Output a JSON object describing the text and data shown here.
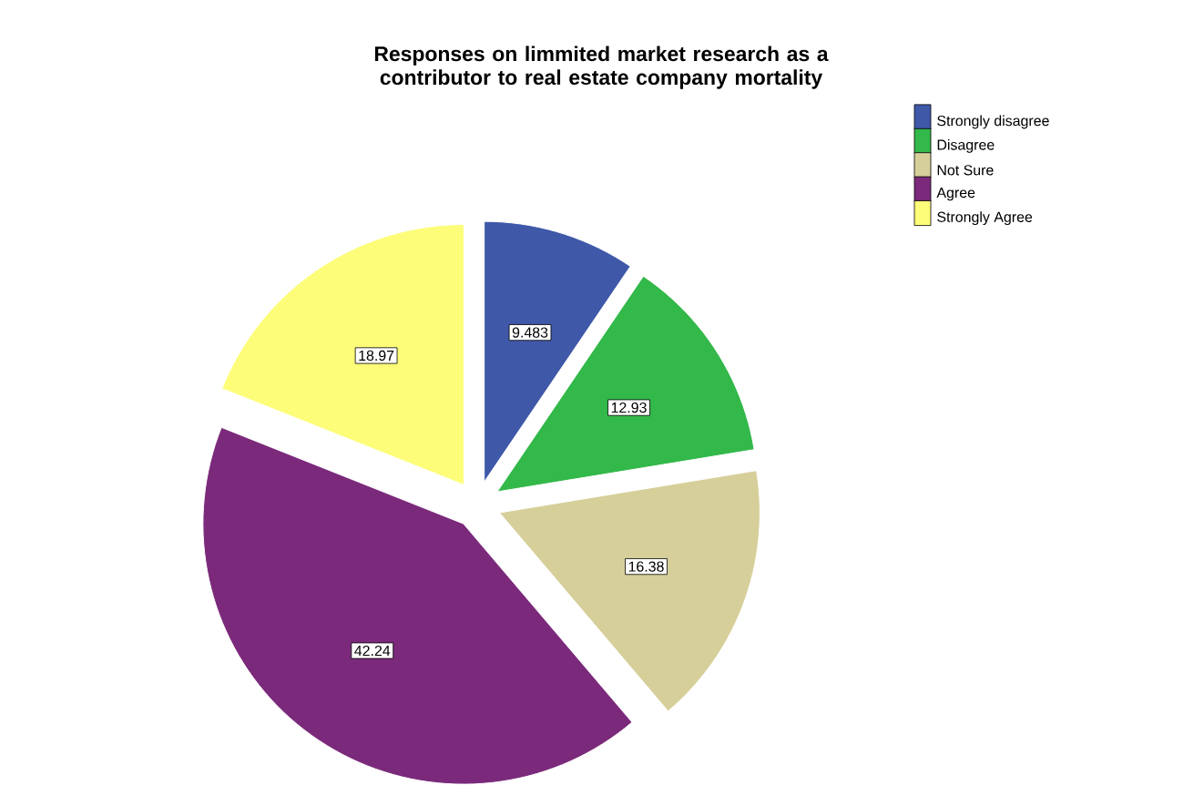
{
  "chart_data": {
    "type": "pie",
    "title": "Responses on limmited market research as a contributor to real estate company mortality",
    "categories": [
      "Strongly disagree",
      "Disagree",
      "Not Sure",
      "Agree",
      "Strongly Agree"
    ],
    "values": [
      9.483,
      12.93,
      16.38,
      42.24,
      18.97
    ],
    "colors": [
      "#3f58a8",
      "#33b84a",
      "#d6cf9a",
      "#7b2a7b",
      "#fdfd7a"
    ],
    "data_labels": true,
    "legend": "top right"
  }
}
